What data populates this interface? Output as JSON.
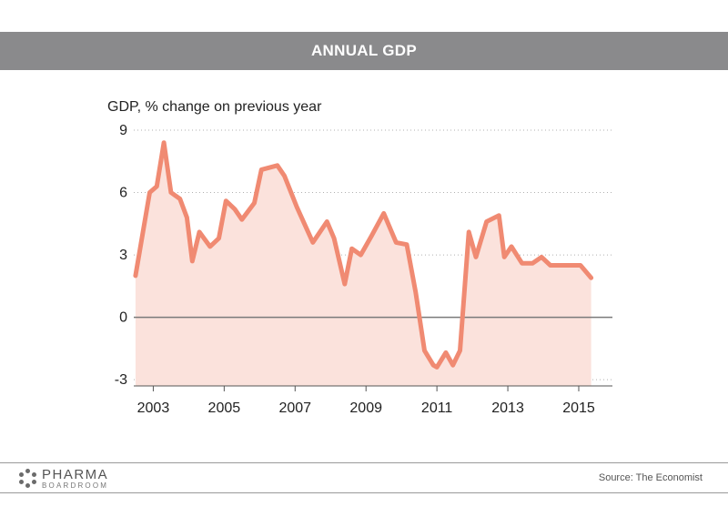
{
  "header": {
    "title": "ANNUAL GDP"
  },
  "chart_data": {
    "type": "area",
    "title": "",
    "ylabel": "GDP, % change on previous year",
    "xlabel": "",
    "ylim": [
      -3.3,
      9
    ],
    "xlim": [
      2002.45,
      2015.95
    ],
    "yticks": [
      9,
      6,
      3,
      0,
      -3
    ],
    "xticks": [
      2003,
      2005,
      2007,
      2009,
      2011,
      2013,
      2015
    ],
    "grid": true,
    "line_color": "#f08a72",
    "fill_color": "#fbe2dc",
    "series": [
      {
        "x": [
          2002.5,
          2002.9,
          2003.1,
          2003.3,
          2003.5,
          2003.75,
          2003.95,
          2004.1,
          2004.3,
          2004.6,
          2004.85,
          2005.05,
          2005.3,
          2005.5,
          2005.85,
          2006.05,
          2006.5,
          2006.7,
          2007.05,
          2007.5,
          2007.9,
          2008.1,
          2008.4,
          2008.6,
          2008.85,
          2009.15,
          2009.5,
          2009.85,
          2010.15,
          2010.4,
          2010.65,
          2010.9,
          2011.0,
          2011.25,
          2011.45,
          2011.65,
          2011.9,
          2012.1,
          2012.4,
          2012.75,
          2012.9,
          2013.1,
          2013.4,
          2013.7,
          2013.95,
          2014.2,
          2014.5,
          2015.05,
          2015.35
        ],
        "y": [
          2.0,
          6.0,
          6.3,
          8.4,
          6.0,
          5.7,
          4.8,
          2.7,
          4.1,
          3.4,
          3.8,
          5.6,
          5.2,
          4.7,
          5.5,
          7.1,
          7.3,
          6.8,
          5.3,
          3.6,
          4.6,
          3.8,
          1.6,
          3.3,
          3.0,
          3.9,
          5.0,
          3.6,
          3.5,
          1.2,
          -1.6,
          -2.3,
          -2.4,
          -1.7,
          -2.3,
          -1.6,
          4.1,
          2.9,
          4.6,
          4.9,
          2.9,
          3.4,
          2.6,
          2.6,
          2.9,
          2.5,
          2.5,
          2.5,
          1.9
        ]
      }
    ]
  },
  "footer": {
    "logo_main": "PHARMA",
    "logo_sub": "BOARDROOM",
    "source": "Source: The Economist"
  }
}
